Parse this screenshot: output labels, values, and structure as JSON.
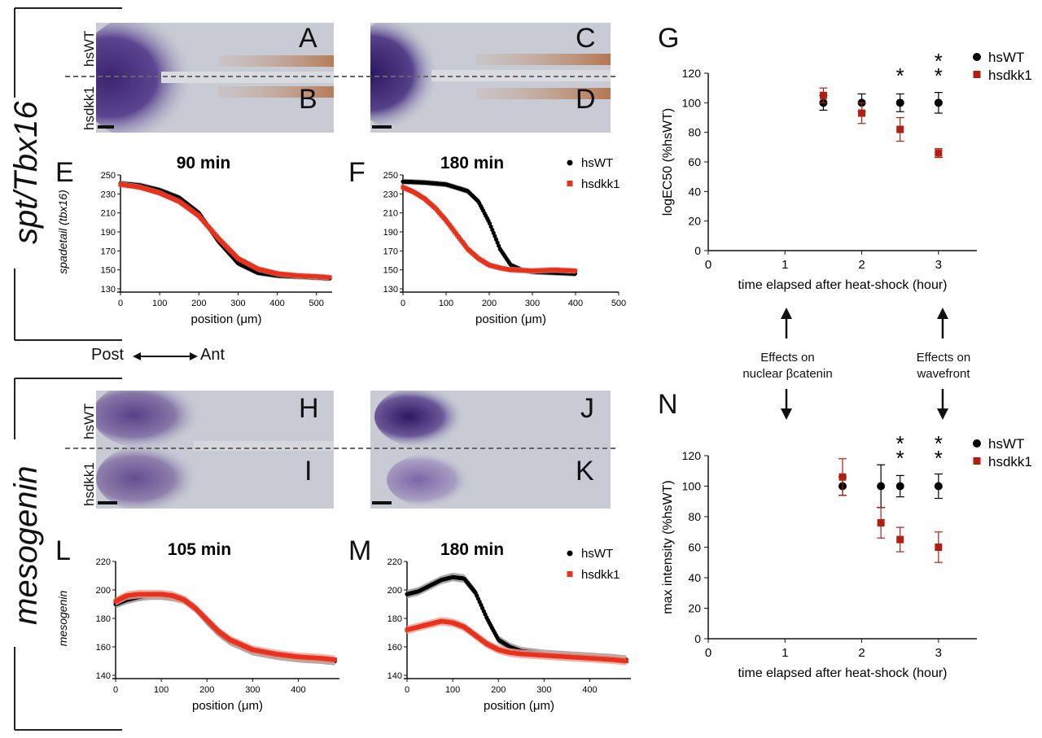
{
  "figure": {
    "row_labels": {
      "top": "spt/Tbx16",
      "bottom": "mesogenin"
    },
    "image_labels": {
      "hsWT": "hsWT",
      "hsdkk1": "hsdkk1"
    },
    "panel_letters": {
      "A": "A",
      "B": "B",
      "C": "C",
      "D": "D",
      "E": "E",
      "F": "F",
      "G": "G",
      "H": "H",
      "I": "I",
      "J": "J",
      "K": "K",
      "L": "L",
      "M": "M",
      "N": "N"
    },
    "axis_direction": {
      "post": "Post",
      "ant": "Ant"
    },
    "annotations": {
      "left_line1": "Effects on",
      "left_line2": "nuclear βcatenin",
      "right_line1": "Effects on",
      "right_line2": "wavefront"
    },
    "colors": {
      "purple_stain": "#4b2f7a",
      "brown_stain": "#b0683a",
      "tissue": "#c9ccd6",
      "hsWT": "#000000",
      "hsdkk1": "#e8321c",
      "hsdkk1_dark": "#b21e12",
      "error_gray": "#9a9a9a",
      "error_pink": "#f4a19a"
    }
  },
  "chart_data": [
    {
      "id": "E",
      "type": "line",
      "title": "90 min",
      "xlabel": "position (μm)",
      "ylabel": "spadetail (tbx16)",
      "xlim": [
        0,
        540
      ],
      "ylim": [
        130,
        250
      ],
      "xticks": [
        "0",
        "100",
        "200",
        "300",
        "400",
        "500"
      ],
      "yticks": [
        "130",
        "150",
        "170",
        "190",
        "210",
        "230",
        "250"
      ],
      "series": [
        {
          "x": [
            0,
            50,
            100,
            150,
            200,
            250,
            300,
            350,
            400,
            450,
            500,
            535
          ],
          "values": [
            241,
            239,
            234,
            226,
            210,
            180,
            157,
            147,
            144,
            143,
            142,
            141
          ]
        },
        {
          "x": [
            0,
            50,
            100,
            150,
            200,
            250,
            300,
            350,
            400,
            450,
            500,
            535
          ],
          "values": [
            240,
            237,
            231,
            222,
            207,
            183,
            162,
            151,
            146,
            144,
            143,
            142
          ]
        }
      ]
    },
    {
      "id": "F",
      "type": "line",
      "title": "180 min",
      "xlabel": "position (μm)",
      "ylabel": "",
      "xlim": [
        0,
        500
      ],
      "ylim": [
        130,
        250
      ],
      "xticks": [
        "0",
        "100",
        "200",
        "300",
        "400",
        "500"
      ],
      "yticks": [
        "130",
        "150",
        "170",
        "190",
        "210",
        "230",
        "250"
      ],
      "legend": [
        "hsWT",
        "hsdkk1"
      ],
      "series": [
        {
          "name": "hsWT",
          "x": [
            0,
            50,
            100,
            150,
            175,
            200,
            225,
            250,
            275,
            300,
            350,
            400
          ],
          "values": [
            243,
            242,
            240,
            233,
            222,
            200,
            172,
            155,
            150,
            148,
            147,
            146
          ]
        },
        {
          "name": "hsdkk1",
          "x": [
            0,
            25,
            50,
            75,
            100,
            125,
            150,
            175,
            200,
            225,
            250,
            300,
            350,
            400
          ],
          "values": [
            237,
            232,
            225,
            215,
            202,
            187,
            172,
            162,
            155,
            152,
            150,
            149,
            150,
            149
          ]
        }
      ]
    },
    {
      "id": "G",
      "type": "scatter",
      "xlabel": "time elapsed after heat-shock (hour)",
      "ylabel": "logEC50 (%hsWT)",
      "xlim": [
        0,
        3.5
      ],
      "ylim": [
        0,
        120
      ],
      "xticks": [
        "0",
        "1",
        "2",
        "3"
      ],
      "yticks": [
        "0",
        "20",
        "40",
        "60",
        "80",
        "100",
        "120"
      ],
      "legend": [
        "hsWT",
        "hsdkk1"
      ],
      "significance": [
        {
          "x": 2.5,
          "label": "*"
        },
        {
          "x": 3.0,
          "label": "**"
        }
      ],
      "series": [
        {
          "name": "hsWT",
          "x": [
            1.5,
            2.0,
            2.5,
            3.0
          ],
          "values": [
            100,
            100,
            100,
            100
          ],
          "err": [
            5,
            6,
            6,
            7
          ]
        },
        {
          "name": "hsdkk1",
          "x": [
            1.5,
            2.0,
            2.5,
            3.0
          ],
          "values": [
            105,
            93,
            82,
            66
          ],
          "err": [
            5,
            7,
            8,
            3
          ]
        }
      ]
    },
    {
      "id": "L",
      "type": "line",
      "title": "105 min",
      "xlabel": "position (μm)",
      "ylabel": "mesogenin",
      "xlim": [
        0,
        490
      ],
      "ylim": [
        140,
        220
      ],
      "xticks": [
        "0",
        "100",
        "200",
        "300",
        "400",
        "500"
      ],
      "yticks": [
        "140",
        "160",
        "180",
        "200",
        "220"
      ],
      "series": [
        {
          "x": [
            0,
            25,
            50,
            75,
            100,
            125,
            150,
            175,
            200,
            225,
            250,
            300,
            350,
            400,
            450,
            480
          ],
          "values": [
            190,
            193,
            195,
            196,
            196,
            195,
            193,
            187,
            178,
            170,
            164,
            157,
            154,
            152,
            151,
            150
          ]
        },
        {
          "x": [
            0,
            25,
            50,
            75,
            100,
            125,
            150,
            175,
            200,
            225,
            250,
            300,
            350,
            400,
            450,
            480
          ],
          "values": [
            192,
            196,
            197,
            197,
            197,
            196,
            193,
            187,
            179,
            171,
            165,
            158,
            155,
            153,
            152,
            151
          ]
        }
      ]
    },
    {
      "id": "M",
      "type": "line",
      "title": "180 min",
      "xlabel": "position (μm)",
      "ylabel": "",
      "xlim": [
        0,
        490
      ],
      "ylim": [
        140,
        220
      ],
      "xticks": [
        "0",
        "100",
        "200",
        "300",
        "400",
        "500"
      ],
      "yticks": [
        "140",
        "160",
        "180",
        "200",
        "220"
      ],
      "legend": [
        "hsWT",
        "hsdkk1"
      ],
      "series": [
        {
          "name": "hsWT",
          "x": [
            0,
            25,
            50,
            75,
            100,
            125,
            150,
            175,
            200,
            225,
            250,
            300,
            350,
            400,
            450,
            480
          ],
          "values": [
            197,
            199,
            203,
            207,
            209,
            208,
            198,
            180,
            165,
            160,
            157,
            155,
            154,
            153,
            152,
            151
          ]
        },
        {
          "name": "hsdkk1",
          "x": [
            0,
            25,
            50,
            75,
            100,
            125,
            150,
            175,
            200,
            225,
            250,
            300,
            350,
            400,
            450,
            480
          ],
          "values": [
            172,
            174,
            176,
            178,
            177,
            174,
            168,
            162,
            158,
            156,
            155,
            154,
            153,
            152,
            151,
            150
          ]
        }
      ]
    },
    {
      "id": "N",
      "type": "scatter",
      "xlabel": "time elapsed after heat-shock (hour)",
      "ylabel": "max intensity (%hsWT)",
      "xlim": [
        0,
        3.5
      ],
      "ylim": [
        0,
        120
      ],
      "xticks": [
        "0",
        "1",
        "2",
        "3"
      ],
      "yticks": [
        "0",
        "20",
        "40",
        "60",
        "80",
        "100",
        "120"
      ],
      "legend": [
        "hsWT",
        "hsdkk1"
      ],
      "significance": [
        {
          "x": 2.5,
          "label": "**"
        },
        {
          "x": 3.0,
          "label": "**"
        }
      ],
      "series": [
        {
          "name": "hsWT",
          "x": [
            1.75,
            2.25,
            2.5,
            3.0
          ],
          "values": [
            100,
            100,
            100,
            100
          ],
          "err": [
            6,
            14,
            7,
            8
          ]
        },
        {
          "name": "hsdkk1",
          "x": [
            1.75,
            2.25,
            2.5,
            3.0
          ],
          "values": [
            106,
            76,
            65,
            60
          ],
          "err": [
            12,
            10,
            8,
            10
          ]
        }
      ]
    }
  ]
}
